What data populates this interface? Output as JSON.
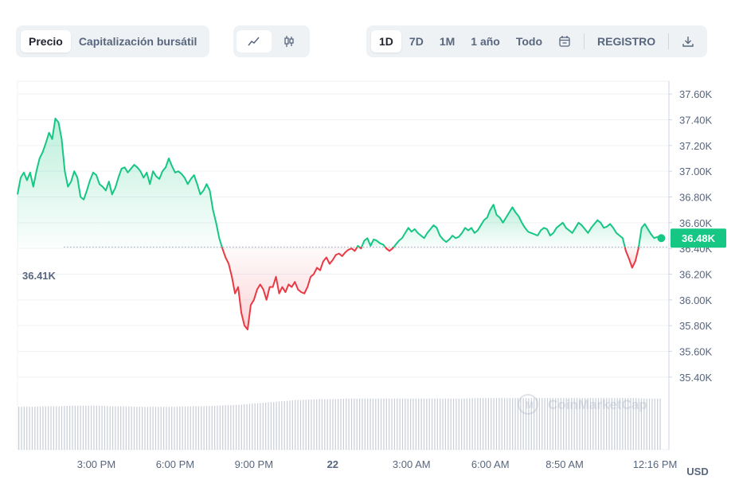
{
  "toolbar": {
    "view_tabs": [
      "Precio",
      "Capitalización bursátil"
    ],
    "active_view": "Precio",
    "chart_type_icons": [
      "line-chart-icon",
      "candlestick-icon"
    ],
    "ranges": [
      "1D",
      "7D",
      "1M",
      "1 año",
      "Todo"
    ],
    "active_range": "1D",
    "calendar_icon": "calendar-icon",
    "log_label": "REGISTRO",
    "download_icon": "download-icon"
  },
  "watermark": "CoinMarketCap",
  "colors": {
    "up": "#16c784",
    "down": "#ea3943",
    "volume": "#c8cdd6",
    "grid": "#eff2f5"
  },
  "chart_data": {
    "type": "line",
    "baseline_label": "36.41K",
    "baseline_value": 36410,
    "current_label": "36.48K",
    "current_value": 36480,
    "currency": "USD",
    "ylim": [
      35300,
      37700
    ],
    "y_ticks": [
      "37.60K",
      "37.40K",
      "37.20K",
      "37.00K",
      "36.80K",
      "36.60K",
      "36.40K",
      "36.20K",
      "36.00K",
      "35.80K",
      "35.60K",
      "35.40K"
    ],
    "y_tick_values": [
      37600,
      37400,
      37200,
      37000,
      36800,
      36600,
      36400,
      36200,
      36000,
      35800,
      35600,
      35400
    ],
    "x_ticks": [
      "3:00 PM",
      "6:00 PM",
      "9:00 PM",
      "22",
      "3:00 AM",
      "6:00 AM",
      "8:50 AM",
      "12:16 PM"
    ],
    "x_tick_hours": [
      3,
      6,
      9,
      12,
      15,
      18,
      20.83,
      24.27
    ],
    "xlim": [
      0,
      24.8
    ],
    "series": [
      {
        "values": [
          [
            0.0,
            36820
          ],
          [
            0.12,
            36950
          ],
          [
            0.24,
            36990
          ],
          [
            0.36,
            36930
          ],
          [
            0.48,
            36990
          ],
          [
            0.6,
            36880
          ],
          [
            0.72,
            37000
          ],
          [
            0.84,
            37100
          ],
          [
            0.96,
            37150
          ],
          [
            1.08,
            37220
          ],
          [
            1.2,
            37300
          ],
          [
            1.32,
            37250
          ],
          [
            1.44,
            37410
          ],
          [
            1.56,
            37380
          ],
          [
            1.68,
            37250
          ],
          [
            1.8,
            37000
          ],
          [
            1.92,
            36880
          ],
          [
            2.04,
            36920
          ],
          [
            2.16,
            37000
          ],
          [
            2.28,
            36950
          ],
          [
            2.4,
            36800
          ],
          [
            2.52,
            36780
          ],
          [
            2.64,
            36850
          ],
          [
            2.76,
            36930
          ],
          [
            2.88,
            36990
          ],
          [
            3.0,
            36970
          ],
          [
            3.12,
            36900
          ],
          [
            3.24,
            36880
          ],
          [
            3.36,
            36850
          ],
          [
            3.48,
            36920
          ],
          [
            3.6,
            36820
          ],
          [
            3.72,
            36870
          ],
          [
            3.84,
            36950
          ],
          [
            3.96,
            37020
          ],
          [
            4.08,
            37030
          ],
          [
            4.2,
            36990
          ],
          [
            4.32,
            37020
          ],
          [
            4.44,
            37050
          ],
          [
            4.56,
            37030
          ],
          [
            4.68,
            37000
          ],
          [
            4.8,
            36950
          ],
          [
            4.92,
            36990
          ],
          [
            5.04,
            36900
          ],
          [
            5.16,
            37000
          ],
          [
            5.28,
            36960
          ],
          [
            5.4,
            36940
          ],
          [
            5.52,
            37000
          ],
          [
            5.64,
            37030
          ],
          [
            5.76,
            37100
          ],
          [
            5.88,
            37040
          ],
          [
            6.0,
            36990
          ],
          [
            6.12,
            37000
          ],
          [
            6.24,
            36980
          ],
          [
            6.36,
            36950
          ],
          [
            6.48,
            36900
          ],
          [
            6.6,
            36940
          ],
          [
            6.72,
            36970
          ],
          [
            6.84,
            36900
          ],
          [
            6.96,
            36820
          ],
          [
            7.08,
            36850
          ],
          [
            7.2,
            36900
          ],
          [
            7.32,
            36850
          ],
          [
            7.44,
            36700
          ],
          [
            7.56,
            36600
          ],
          [
            7.68,
            36480
          ],
          [
            7.8,
            36400
          ],
          [
            7.92,
            36330
          ],
          [
            8.04,
            36280
          ],
          [
            8.16,
            36180
          ],
          [
            8.28,
            36050
          ],
          [
            8.4,
            36100
          ],
          [
            8.52,
            35900
          ],
          [
            8.64,
            35800
          ],
          [
            8.76,
            35770
          ],
          [
            8.88,
            35960
          ],
          [
            9.0,
            36000
          ],
          [
            9.12,
            36080
          ],
          [
            9.24,
            36120
          ],
          [
            9.36,
            36080
          ],
          [
            9.48,
            36000
          ],
          [
            9.6,
            36100
          ],
          [
            9.72,
            36100
          ],
          [
            9.84,
            36180
          ],
          [
            9.96,
            36050
          ],
          [
            10.08,
            36100
          ],
          [
            10.2,
            36060
          ],
          [
            10.32,
            36120
          ],
          [
            10.44,
            36100
          ],
          [
            10.56,
            36140
          ],
          [
            10.68,
            36080
          ],
          [
            10.8,
            36060
          ],
          [
            10.92,
            36050
          ],
          [
            11.04,
            36100
          ],
          [
            11.16,
            36180
          ],
          [
            11.28,
            36200
          ],
          [
            11.4,
            36250
          ],
          [
            11.52,
            36230
          ],
          [
            11.64,
            36300
          ],
          [
            11.76,
            36330
          ],
          [
            11.88,
            36280
          ],
          [
            12.0,
            36310
          ],
          [
            12.12,
            36350
          ],
          [
            12.24,
            36360
          ],
          [
            12.36,
            36340
          ],
          [
            12.48,
            36370
          ],
          [
            12.6,
            36390
          ],
          [
            12.72,
            36400
          ],
          [
            12.84,
            36380
          ],
          [
            12.96,
            36420
          ],
          [
            13.08,
            36400
          ],
          [
            13.2,
            36460
          ],
          [
            13.32,
            36480
          ],
          [
            13.44,
            36420
          ],
          [
            13.56,
            36470
          ],
          [
            13.68,
            36460
          ],
          [
            13.8,
            36440
          ],
          [
            13.92,
            36430
          ],
          [
            14.04,
            36400
          ],
          [
            14.16,
            36380
          ],
          [
            14.28,
            36400
          ],
          [
            14.4,
            36430
          ],
          [
            14.52,
            36460
          ],
          [
            14.64,
            36480
          ],
          [
            14.76,
            36520
          ],
          [
            14.88,
            36560
          ],
          [
            15.0,
            36530
          ],
          [
            15.12,
            36550
          ],
          [
            15.24,
            36520
          ],
          [
            15.36,
            36500
          ],
          [
            15.48,
            36480
          ],
          [
            15.6,
            36520
          ],
          [
            15.72,
            36550
          ],
          [
            15.84,
            36580
          ],
          [
            15.96,
            36560
          ],
          [
            16.08,
            36500
          ],
          [
            16.2,
            36470
          ],
          [
            16.32,
            36450
          ],
          [
            16.44,
            36470
          ],
          [
            16.56,
            36500
          ],
          [
            16.68,
            36480
          ],
          [
            16.8,
            36490
          ],
          [
            16.92,
            36520
          ],
          [
            17.04,
            36560
          ],
          [
            17.16,
            36540
          ],
          [
            17.28,
            36560
          ],
          [
            17.4,
            36520
          ],
          [
            17.52,
            36540
          ],
          [
            17.64,
            36580
          ],
          [
            17.76,
            36620
          ],
          [
            17.88,
            36640
          ],
          [
            18.0,
            36700
          ],
          [
            18.12,
            36740
          ],
          [
            18.24,
            36660
          ],
          [
            18.36,
            36640
          ],
          [
            18.48,
            36600
          ],
          [
            18.6,
            36640
          ],
          [
            18.72,
            36680
          ],
          [
            18.84,
            36720
          ],
          [
            18.96,
            36680
          ],
          [
            19.08,
            36650
          ],
          [
            19.2,
            36600
          ],
          [
            19.32,
            36560
          ],
          [
            19.44,
            36530
          ],
          [
            19.56,
            36520
          ],
          [
            19.68,
            36510
          ],
          [
            19.8,
            36500
          ],
          [
            19.92,
            36540
          ],
          [
            20.04,
            36560
          ],
          [
            20.16,
            36550
          ],
          [
            20.28,
            36500
          ],
          [
            20.4,
            36520
          ],
          [
            20.52,
            36560
          ],
          [
            20.64,
            36580
          ],
          [
            20.76,
            36600
          ],
          [
            20.88,
            36560
          ],
          [
            21.0,
            36540
          ],
          [
            21.12,
            36520
          ],
          [
            21.24,
            36560
          ],
          [
            21.36,
            36600
          ],
          [
            21.48,
            36580
          ],
          [
            21.6,
            36550
          ],
          [
            21.72,
            36520
          ],
          [
            21.84,
            36560
          ],
          [
            21.96,
            36590
          ],
          [
            22.08,
            36620
          ],
          [
            22.2,
            36600
          ],
          [
            22.32,
            36560
          ],
          [
            22.44,
            36570
          ],
          [
            22.56,
            36590
          ],
          [
            22.68,
            36560
          ],
          [
            22.8,
            36520
          ],
          [
            22.92,
            36500
          ],
          [
            23.04,
            36480
          ],
          [
            23.16,
            36380
          ],
          [
            23.28,
            36320
          ],
          [
            23.4,
            36250
          ],
          [
            23.52,
            36300
          ],
          [
            23.64,
            36400
          ],
          [
            23.76,
            36560
          ],
          [
            23.88,
            36590
          ],
          [
            24.0,
            36550
          ],
          [
            24.12,
            36510
          ],
          [
            24.24,
            36480
          ],
          [
            24.36,
            36490
          ],
          [
            24.48,
            36480
          ]
        ]
      }
    ],
    "volume_relative": [
      0.78,
      0.78,
      0.79,
      0.79,
      0.8,
      0.8,
      0.8,
      0.79,
      0.79,
      0.78,
      0.78,
      0.78,
      0.78,
      0.79,
      0.79,
      0.8,
      0.81,
      0.82,
      0.84,
      0.86,
      0.88,
      0.9,
      0.91,
      0.92,
      0.92,
      0.93,
      0.93,
      0.93,
      0.93,
      0.93,
      0.93,
      0.93,
      0.93,
      0.93,
      0.93,
      0.94,
      0.94,
      0.94,
      0.94,
      0.94,
      0.94,
      0.94,
      0.94,
      0.94,
      0.94,
      0.94,
      0.94,
      0.94,
      0.93,
      0.93
    ]
  }
}
